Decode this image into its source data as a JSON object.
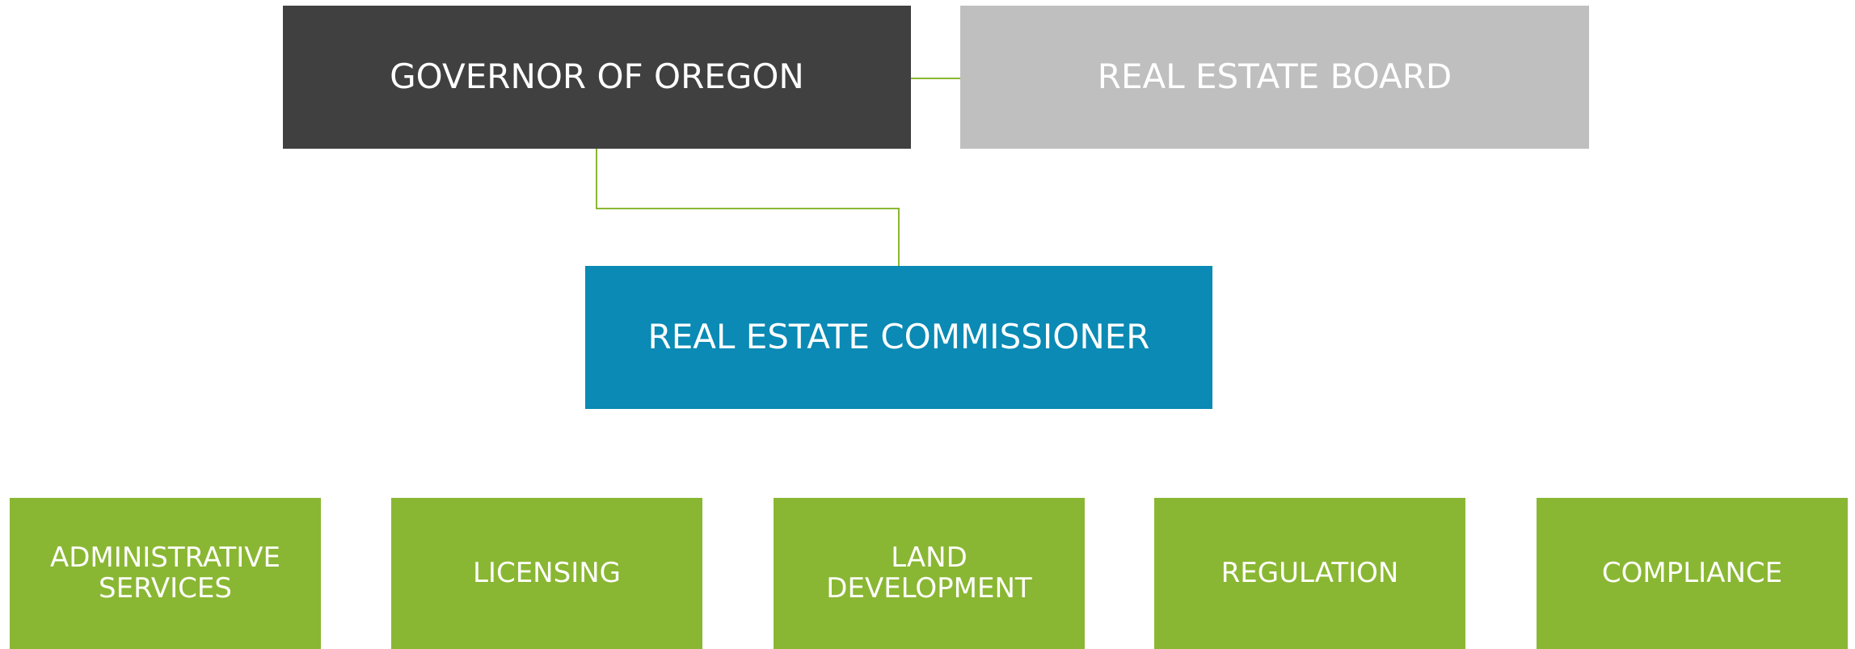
{
  "nodes": [
    {
      "label": "GOVERNOR OF OREGON"
    },
    {
      "label": "REAL ESTATE BOARD"
    },
    {
      "label": "REAL ESTATE COMMISSIONER"
    },
    {
      "label": "ADMINISTRATIVE SERVICES"
    },
    {
      "label": "LICENSING"
    },
    {
      "label": "LAND DEVELOPMENT"
    },
    {
      "label": "REGULATION"
    },
    {
      "label": "COMPLIANCE"
    }
  ]
}
